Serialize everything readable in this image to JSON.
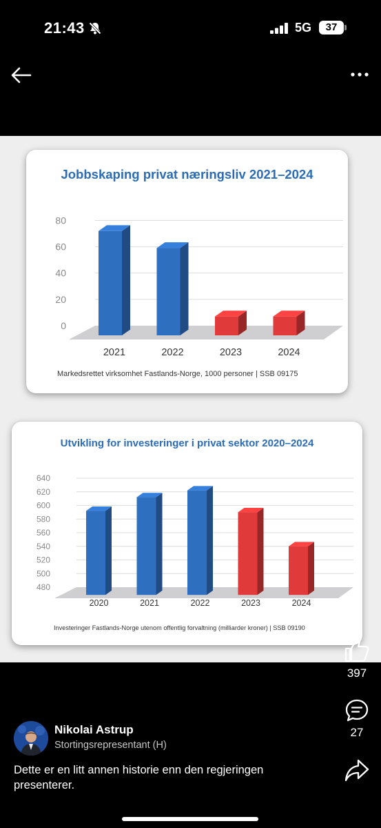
{
  "status": {
    "time": "21:43",
    "network": "5G",
    "battery": "37"
  },
  "post": {
    "author_name": "Nikolai Astrup",
    "author_title": "Stortingsrepresentant (H)",
    "text": "Dette er en litt annen historie enn den regjeringen presenterer.",
    "likes": "397",
    "comments": "27"
  },
  "icons": [
    "back-arrow-icon",
    "more-icon",
    "like-icon",
    "comment-icon",
    "share-icon",
    "mute-icon",
    "signal-icon"
  ],
  "colors": {
    "bar_blue": "#2f6fc0",
    "bar_red": "#e03a3a",
    "title_blue": "#2b6cb8"
  },
  "chart_data": [
    {
      "type": "bar",
      "title": "Jobbskaping privat næringsliv 2021–2024",
      "source": "Markedsrettet virksomhet Fastlands-Norge, 1000 personer | SSB 09175",
      "categories": [
        "2021",
        "2022",
        "2023",
        "2024"
      ],
      "values": [
        72,
        59,
        7,
        7
      ],
      "colors": [
        "#2f6fc0",
        "#2f6fc0",
        "#e03a3a",
        "#e03a3a"
      ],
      "ylim": [
        0,
        85
      ],
      "yticks": [
        "0",
        "20",
        "40",
        "60",
        "80"
      ],
      "ytick_values": [
        0,
        20,
        40,
        60,
        80
      ]
    },
    {
      "type": "bar",
      "title": "Utvikling for investeringer i privat sektor 2020–2024",
      "source": "Investeringer Fastlands-Norge utenom offentlig forvaltning (milliarder kroner) | SSB 09190",
      "categories": [
        "2020",
        "2021",
        "2022",
        "2023",
        "2024"
      ],
      "values": [
        592,
        612,
        622,
        590,
        540
      ],
      "colors": [
        "#2f6fc0",
        "#2f6fc0",
        "#2f6fc0",
        "#e03a3a",
        "#e03a3a"
      ],
      "ylim": [
        480,
        645
      ],
      "yticks": [
        "480",
        "500",
        "520",
        "540",
        "560",
        "580",
        "600",
        "620",
        "640"
      ],
      "ytick_values": [
        480,
        500,
        520,
        540,
        560,
        580,
        600,
        620,
        640
      ]
    }
  ]
}
